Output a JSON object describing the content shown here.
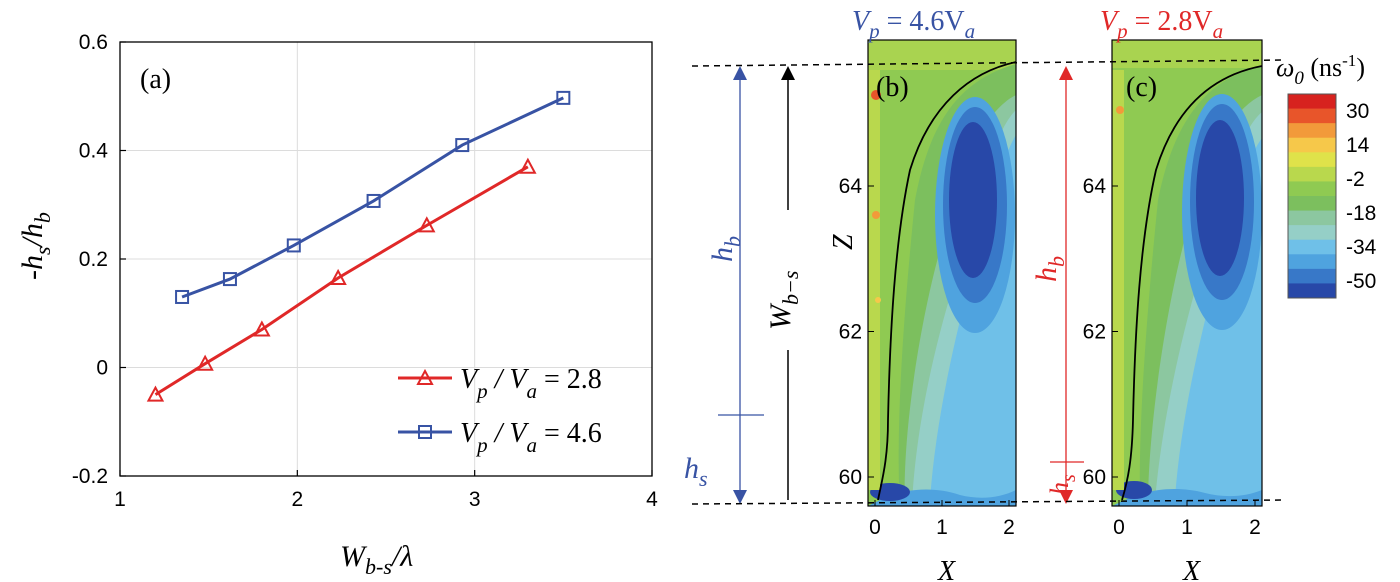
{
  "chart_data": [
    {
      "type": "line",
      "panel_label": "(a)",
      "xlabel_main": "W",
      "xlabel_sub": "b-s",
      "xlabel_tail": "/λ",
      "ylabel_parts": [
        "-h",
        "s",
        "/h",
        "b"
      ],
      "xlim": [
        1,
        4
      ],
      "ylim": [
        -0.2,
        0.6
      ],
      "xticks": [
        1,
        2,
        3,
        4
      ],
      "yticks": [
        -0.2,
        0,
        0.2,
        0.4,
        0.6
      ],
      "ytick_labels": [
        "-0.2",
        "0",
        "0.2",
        "0.4",
        "0.6"
      ],
      "grid": true,
      "legend_position": "bottom-right",
      "series": [
        {
          "legend_parts": [
            "V",
            "p",
            " / V",
            "a",
            " = 2.8"
          ],
          "color": "#e02828",
          "marker": "triangle",
          "x": [
            1.2,
            1.48,
            1.8,
            2.23,
            2.73,
            3.3
          ],
          "y": [
            -0.05,
            0.007,
            0.07,
            0.165,
            0.262,
            0.37
          ]
        },
        {
          "legend_parts": [
            "V",
            "p",
            " / V",
            "a",
            " = 4.6"
          ],
          "color": "#3853a4",
          "marker": "square",
          "x": [
            1.35,
            1.62,
            1.98,
            2.43,
            2.93,
            3.5
          ],
          "y": [
            0.13,
            0.163,
            0.225,
            0.307,
            0.41,
            0.497
          ]
        }
      ]
    },
    {
      "type": "heatmap",
      "panels": [
        {
          "label": "(b)",
          "title_parts": [
            "V",
            "p",
            " = 4.6V",
            "a"
          ],
          "title_color": "#3853a4",
          "xticks": [
            0,
            1,
            2
          ],
          "yticks": [
            60,
            62,
            64
          ],
          "xlabel": "X",
          "ylabel": "Z",
          "annotations": {
            "hb": [
              "h",
              "b"
            ],
            "hs": [
              "h",
              "s"
            ],
            "wbs": [
              "W",
              "b−s"
            ],
            "color": "#3853a4"
          }
        },
        {
          "label": "(c)",
          "title_parts": [
            "V",
            "p",
            " = 2.8V",
            "a"
          ],
          "title_color": "#e02828",
          "xticks": [
            0,
            1,
            2
          ],
          "yticks": [
            60,
            62,
            64
          ],
          "xlabel": "X",
          "annotations": {
            "hb": [
              "h",
              "b"
            ],
            "hs": [
              "h",
              "s"
            ],
            "color": "#e02828"
          }
        }
      ],
      "colorbar": {
        "title_parts": [
          "ω",
          "0",
          " (ns",
          "-1",
          ")"
        ],
        "levels": [
          30,
          14,
          -2,
          -18,
          -34,
          -50
        ],
        "colors": [
          "#d7221f",
          "#e8552a",
          "#f29a3a",
          "#f6c84a",
          "#dfe24a",
          "#b9d84d",
          "#8fca52",
          "#7cbf5e",
          "#8cc7a0",
          "#95cfc7",
          "#6fc0e8",
          "#4fa3df",
          "#3878c8",
          "#2848a8"
        ]
      }
    }
  ]
}
